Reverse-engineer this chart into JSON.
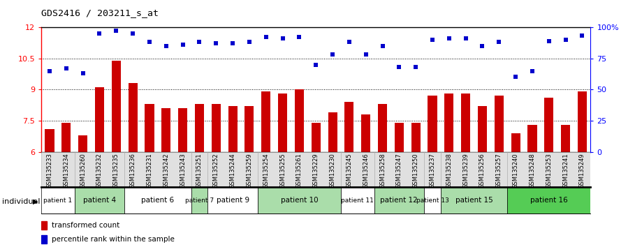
{
  "title": "GDS2416 / 203211_s_at",
  "samples": [
    "GSM135233",
    "GSM135234",
    "GSM135260",
    "GSM135232",
    "GSM135235",
    "GSM135236",
    "GSM135231",
    "GSM135242",
    "GSM135243",
    "GSM135251",
    "GSM135252",
    "GSM135244",
    "GSM135259",
    "GSM135254",
    "GSM135255",
    "GSM135261",
    "GSM135229",
    "GSM135230",
    "GSM135245",
    "GSM135246",
    "GSM135258",
    "GSM135247",
    "GSM135250",
    "GSM135237",
    "GSM135238",
    "GSM135239",
    "GSM135256",
    "GSM135257",
    "GSM135240",
    "GSM135248",
    "GSM135253",
    "GSM135241",
    "GSM135249"
  ],
  "bar_values": [
    7.1,
    7.4,
    6.8,
    9.1,
    10.4,
    9.3,
    8.3,
    8.1,
    8.1,
    8.3,
    8.3,
    8.2,
    8.2,
    8.9,
    8.8,
    9.0,
    7.4,
    7.9,
    8.4,
    7.8,
    8.3,
    7.4,
    7.4,
    8.7,
    8.8,
    8.8,
    8.2,
    8.7,
    6.9,
    7.3,
    8.6,
    7.3,
    8.9
  ],
  "percentile_values": [
    65,
    67,
    63,
    95,
    97,
    95,
    88,
    85,
    86,
    88,
    87,
    87,
    88,
    92,
    91,
    92,
    70,
    78,
    88,
    78,
    85,
    68,
    68,
    90,
    91,
    91,
    85,
    88,
    60,
    65,
    89,
    90,
    93
  ],
  "ylim_left": [
    6,
    12
  ],
  "ylim_right": [
    0,
    100
  ],
  "yticks_left": [
    6,
    7.5,
    9,
    10.5,
    12
  ],
  "yticks_right": [
    0,
    25,
    50,
    75,
    100
  ],
  "ytick_labels_right": [
    "0",
    "25",
    "50",
    "75",
    "100%"
  ],
  "hlines": [
    7.5,
    9,
    10.5
  ],
  "bar_color": "#cc0000",
  "scatter_color": "#0000cc",
  "patient_groups": [
    {
      "label": "patient 1",
      "start": 0,
      "end": 2,
      "color": "#ffffff"
    },
    {
      "label": "patient 4",
      "start": 2,
      "end": 5,
      "color": "#aaddaa"
    },
    {
      "label": "patient 6",
      "start": 5,
      "end": 9,
      "color": "#ffffff"
    },
    {
      "label": "patient 7",
      "start": 9,
      "end": 10,
      "color": "#aaddaa"
    },
    {
      "label": "patient 9",
      "start": 10,
      "end": 13,
      "color": "#ffffff"
    },
    {
      "label": "patient 10",
      "start": 13,
      "end": 18,
      "color": "#aaddaa"
    },
    {
      "label": "patient 11",
      "start": 18,
      "end": 20,
      "color": "#ffffff"
    },
    {
      "label": "patient 12",
      "start": 20,
      "end": 23,
      "color": "#aaddaa"
    },
    {
      "label": "patient 13",
      "start": 23,
      "end": 24,
      "color": "#ffffff"
    },
    {
      "label": "patient 15",
      "start": 24,
      "end": 28,
      "color": "#aaddaa"
    },
    {
      "label": "patient 16",
      "start": 28,
      "end": 33,
      "color": "#55cc55"
    }
  ],
  "background_color": "#ffffff",
  "fig_width": 9.09,
  "fig_height": 3.54,
  "dpi": 100
}
